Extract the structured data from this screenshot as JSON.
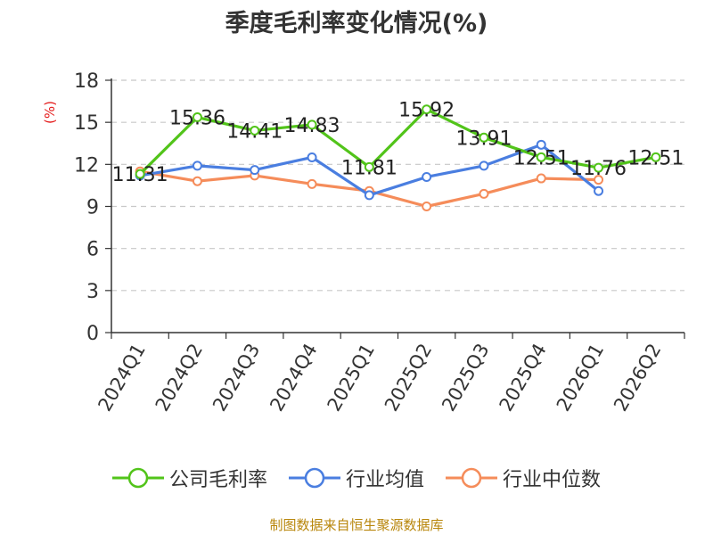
{
  "title": "季度毛利率变化情况(%)",
  "unit_label": "(%)",
  "source": "制图数据来自恒生聚源数据库",
  "chart_data": {
    "type": "line",
    "title": "季度毛利率变化情况(%)",
    "ylabel": "(%)",
    "categories": [
      "2024Q1",
      "2024Q2",
      "2024Q3",
      "2024Q4",
      "2025Q1",
      "2025Q2",
      "2025Q3",
      "2025Q4",
      "2026Q1",
      "2026Q2"
    ],
    "ylim": [
      0,
      18
    ],
    "yticks": [
      0,
      3,
      6,
      9,
      12,
      15,
      18
    ],
    "grid": true,
    "legend_position": "bottom",
    "series": [
      {
        "name": "公司毛利率",
        "color": "#52c41a",
        "values": [
          11.31,
          15.36,
          14.41,
          14.83,
          11.81,
          15.92,
          13.91,
          12.51,
          11.76,
          12.51
        ],
        "labels": [
          "11.31",
          "15.36",
          "14.41",
          "14.83",
          "11.81",
          "15.92",
          "13.91",
          "12.51",
          "11.76",
          "12.51"
        ]
      },
      {
        "name": "行业均值",
        "color": "#4a7ee0",
        "values": [
          11.2,
          11.9,
          11.6,
          12.5,
          9.8,
          11.1,
          11.9,
          13.4,
          10.1,
          null
        ]
      },
      {
        "name": "行业中位数",
        "color": "#f58c5a",
        "values": [
          11.5,
          10.8,
          11.2,
          10.6,
          10.1,
          9.0,
          9.9,
          11.0,
          10.9,
          null
        ]
      }
    ]
  }
}
